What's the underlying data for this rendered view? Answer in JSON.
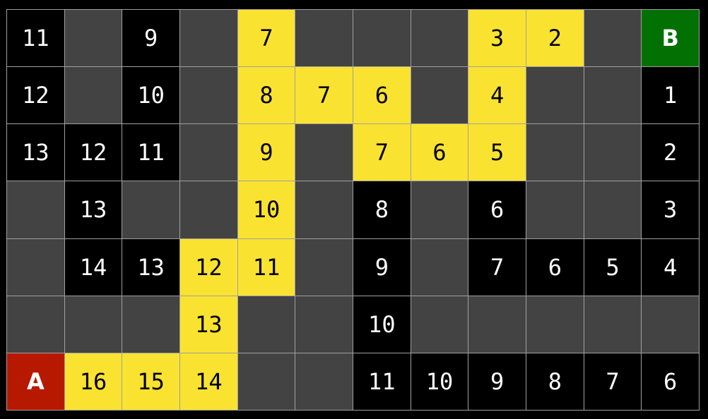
{
  "legend_types": {
    "wall": "#434343",
    "open": "#000000",
    "path": "#fae231",
    "start": "#b71800",
    "end": "#037003"
  },
  "grid": [
    [
      {
        "t": "open",
        "v": "11"
      },
      {
        "t": "wall",
        "v": ""
      },
      {
        "t": "open",
        "v": "9"
      },
      {
        "t": "wall",
        "v": ""
      },
      {
        "t": "path",
        "v": "7"
      },
      {
        "t": "wall",
        "v": ""
      },
      {
        "t": "wall",
        "v": ""
      },
      {
        "t": "wall",
        "v": ""
      },
      {
        "t": "path",
        "v": "3"
      },
      {
        "t": "path",
        "v": "2"
      },
      {
        "t": "wall",
        "v": ""
      },
      {
        "t": "end",
        "v": "B"
      }
    ],
    [
      {
        "t": "open",
        "v": "12"
      },
      {
        "t": "wall",
        "v": ""
      },
      {
        "t": "open",
        "v": "10"
      },
      {
        "t": "wall",
        "v": ""
      },
      {
        "t": "path",
        "v": "8"
      },
      {
        "t": "path",
        "v": "7"
      },
      {
        "t": "path",
        "v": "6"
      },
      {
        "t": "wall",
        "v": ""
      },
      {
        "t": "path",
        "v": "4"
      },
      {
        "t": "wall",
        "v": ""
      },
      {
        "t": "wall",
        "v": ""
      },
      {
        "t": "open",
        "v": "1"
      }
    ],
    [
      {
        "t": "open",
        "v": "13"
      },
      {
        "t": "open",
        "v": "12"
      },
      {
        "t": "open",
        "v": "11"
      },
      {
        "t": "wall",
        "v": ""
      },
      {
        "t": "path",
        "v": "9"
      },
      {
        "t": "wall",
        "v": ""
      },
      {
        "t": "path",
        "v": "7"
      },
      {
        "t": "path",
        "v": "6"
      },
      {
        "t": "path",
        "v": "5"
      },
      {
        "t": "wall",
        "v": ""
      },
      {
        "t": "wall",
        "v": ""
      },
      {
        "t": "open",
        "v": "2"
      }
    ],
    [
      {
        "t": "wall",
        "v": ""
      },
      {
        "t": "open",
        "v": "13"
      },
      {
        "t": "wall",
        "v": ""
      },
      {
        "t": "wall",
        "v": ""
      },
      {
        "t": "path",
        "v": "10"
      },
      {
        "t": "wall",
        "v": ""
      },
      {
        "t": "open",
        "v": "8"
      },
      {
        "t": "wall",
        "v": ""
      },
      {
        "t": "open",
        "v": "6"
      },
      {
        "t": "wall",
        "v": ""
      },
      {
        "t": "wall",
        "v": ""
      },
      {
        "t": "open",
        "v": "3"
      }
    ],
    [
      {
        "t": "wall",
        "v": ""
      },
      {
        "t": "open",
        "v": "14"
      },
      {
        "t": "open",
        "v": "13"
      },
      {
        "t": "path",
        "v": "12"
      },
      {
        "t": "path",
        "v": "11"
      },
      {
        "t": "wall",
        "v": ""
      },
      {
        "t": "open",
        "v": "9"
      },
      {
        "t": "wall",
        "v": ""
      },
      {
        "t": "open",
        "v": "7"
      },
      {
        "t": "open",
        "v": "6"
      },
      {
        "t": "open",
        "v": "5"
      },
      {
        "t": "open",
        "v": "4"
      }
    ],
    [
      {
        "t": "wall",
        "v": ""
      },
      {
        "t": "wall",
        "v": ""
      },
      {
        "t": "wall",
        "v": ""
      },
      {
        "t": "path",
        "v": "13"
      },
      {
        "t": "wall",
        "v": ""
      },
      {
        "t": "wall",
        "v": ""
      },
      {
        "t": "open",
        "v": "10"
      },
      {
        "t": "wall",
        "v": ""
      },
      {
        "t": "wall",
        "v": ""
      },
      {
        "t": "wall",
        "v": ""
      },
      {
        "t": "wall",
        "v": ""
      },
      {
        "t": "wall",
        "v": ""
      }
    ],
    [
      {
        "t": "start",
        "v": "A"
      },
      {
        "t": "path",
        "v": "16"
      },
      {
        "t": "path",
        "v": "15"
      },
      {
        "t": "path",
        "v": "14"
      },
      {
        "t": "wall",
        "v": ""
      },
      {
        "t": "wall",
        "v": ""
      },
      {
        "t": "open",
        "v": "11"
      },
      {
        "t": "open",
        "v": "10"
      },
      {
        "t": "open",
        "v": "9"
      },
      {
        "t": "open",
        "v": "8"
      },
      {
        "t": "open",
        "v": "7"
      },
      {
        "t": "open",
        "v": "6"
      }
    ]
  ]
}
